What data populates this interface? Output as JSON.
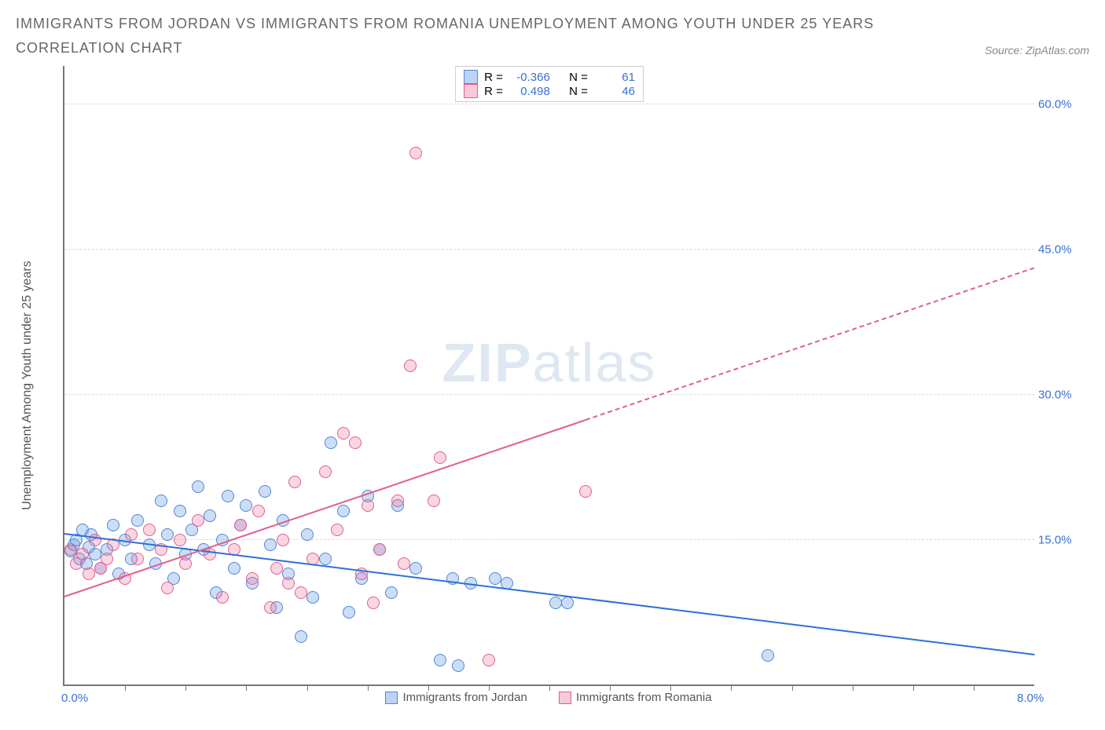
{
  "title": "IMMIGRANTS FROM JORDAN VS IMMIGRANTS FROM ROMANIA UNEMPLOYMENT AMONG YOUTH UNDER 25 YEARS CORRELATION CHART",
  "source": "Source: ZipAtlas.com",
  "ylabel": "Unemployment Among Youth under 25 years",
  "watermark": {
    "strong": "ZIP",
    "light": "atlas"
  },
  "chart": {
    "type": "scatter-correlation",
    "x": {
      "min": 0.0,
      "max": 8.0,
      "min_label": "0.0%",
      "max_label": "8.0%",
      "ticks_every": 0.5
    },
    "y": {
      "min": 0.0,
      "max": 64.0,
      "gridlines": [
        15.0,
        30.0,
        45.0,
        60.0
      ],
      "grid_labels": [
        "15.0%",
        "30.0%",
        "45.0%",
        "60.0%"
      ]
    },
    "grid_color": "#dddddd",
    "axis_color": "#777777",
    "bg_color": "#ffffff",
    "series": [
      {
        "key": "jordan",
        "name": "Immigrants from Jordan",
        "fill": "rgba(110,160,230,0.35)",
        "stroke": "#4f86d9",
        "R": "-0.366",
        "N": "61",
        "trend": {
          "y_at_xmin": 15.5,
          "y_at_xmax": 3.0,
          "solid_until_x": 8.0,
          "color": "#2e6fd6"
        },
        "points": [
          [
            0.05,
            13.8
          ],
          [
            0.08,
            14.5
          ],
          [
            0.1,
            15.0
          ],
          [
            0.12,
            13.0
          ],
          [
            0.15,
            16.0
          ],
          [
            0.18,
            12.5
          ],
          [
            0.2,
            14.2
          ],
          [
            0.22,
            15.5
          ],
          [
            0.25,
            13.5
          ],
          [
            0.3,
            12.0
          ],
          [
            0.35,
            14.0
          ],
          [
            0.4,
            16.5
          ],
          [
            0.45,
            11.5
          ],
          [
            0.5,
            15.0
          ],
          [
            0.55,
            13.0
          ],
          [
            0.6,
            17.0
          ],
          [
            0.7,
            14.5
          ],
          [
            0.75,
            12.5
          ],
          [
            0.8,
            19.0
          ],
          [
            0.85,
            15.5
          ],
          [
            0.9,
            11.0
          ],
          [
            0.95,
            18.0
          ],
          [
            1.0,
            13.5
          ],
          [
            1.05,
            16.0
          ],
          [
            1.1,
            20.5
          ],
          [
            1.15,
            14.0
          ],
          [
            1.2,
            17.5
          ],
          [
            1.25,
            9.5
          ],
          [
            1.3,
            15.0
          ],
          [
            1.35,
            19.5
          ],
          [
            1.4,
            12.0
          ],
          [
            1.45,
            16.5
          ],
          [
            1.5,
            18.5
          ],
          [
            1.55,
            10.5
          ],
          [
            1.65,
            20.0
          ],
          [
            1.7,
            14.5
          ],
          [
            1.75,
            8.0
          ],
          [
            1.8,
            17.0
          ],
          [
            1.85,
            11.5
          ],
          [
            1.95,
            5.0
          ],
          [
            2.0,
            15.5
          ],
          [
            2.05,
            9.0
          ],
          [
            2.15,
            13.0
          ],
          [
            2.2,
            25.0
          ],
          [
            2.3,
            18.0
          ],
          [
            2.35,
            7.5
          ],
          [
            2.45,
            11.0
          ],
          [
            2.5,
            19.5
          ],
          [
            2.6,
            14.0
          ],
          [
            2.7,
            9.5
          ],
          [
            2.75,
            18.5
          ],
          [
            2.9,
            12.0
          ],
          [
            3.1,
            2.5
          ],
          [
            3.2,
            11.0
          ],
          [
            3.25,
            2.0
          ],
          [
            3.35,
            10.5
          ],
          [
            3.55,
            11.0
          ],
          [
            3.65,
            10.5
          ],
          [
            4.05,
            8.5
          ],
          [
            4.15,
            8.5
          ],
          [
            5.8,
            3.0
          ]
        ]
      },
      {
        "key": "romania",
        "name": "Immigrants from Romania",
        "fill": "rgba(235,120,160,0.30)",
        "stroke": "#e15f8f",
        "R": "0.498",
        "N": "46",
        "trend": {
          "y_at_xmin": 9.0,
          "y_at_xmax": 43.0,
          "solid_until_x": 4.3,
          "color": "#e15f8f"
        },
        "points": [
          [
            0.05,
            14.0
          ],
          [
            0.1,
            12.5
          ],
          [
            0.15,
            13.5
          ],
          [
            0.2,
            11.5
          ],
          [
            0.25,
            15.0
          ],
          [
            0.3,
            12.0
          ],
          [
            0.35,
            13.0
          ],
          [
            0.4,
            14.5
          ],
          [
            0.5,
            11.0
          ],
          [
            0.55,
            15.5
          ],
          [
            0.6,
            13.0
          ],
          [
            0.7,
            16.0
          ],
          [
            0.8,
            14.0
          ],
          [
            0.85,
            10.0
          ],
          [
            0.95,
            15.0
          ],
          [
            1.0,
            12.5
          ],
          [
            1.1,
            17.0
          ],
          [
            1.2,
            13.5
          ],
          [
            1.3,
            9.0
          ],
          [
            1.4,
            14.0
          ],
          [
            1.45,
            16.5
          ],
          [
            1.55,
            11.0
          ],
          [
            1.6,
            18.0
          ],
          [
            1.7,
            8.0
          ],
          [
            1.75,
            12.0
          ],
          [
            1.8,
            15.0
          ],
          [
            1.85,
            10.5
          ],
          [
            1.9,
            21.0
          ],
          [
            1.95,
            9.5
          ],
          [
            2.05,
            13.0
          ],
          [
            2.15,
            22.0
          ],
          [
            2.25,
            16.0
          ],
          [
            2.3,
            26.0
          ],
          [
            2.4,
            25.0
          ],
          [
            2.45,
            11.5
          ],
          [
            2.5,
            18.5
          ],
          [
            2.55,
            8.5
          ],
          [
            2.6,
            14.0
          ],
          [
            2.75,
            19.0
          ],
          [
            2.8,
            12.5
          ],
          [
            2.85,
            33.0
          ],
          [
            2.9,
            55.0
          ],
          [
            3.05,
            19.0
          ],
          [
            3.1,
            23.5
          ],
          [
            3.5,
            2.5
          ],
          [
            4.3,
            20.0
          ]
        ]
      }
    ],
    "legend_top": {
      "rows": [
        {
          "sw": "b",
          "r_label": "R =",
          "r_val": "-0.366",
          "n_label": "N =",
          "n_val": "61"
        },
        {
          "sw": "p",
          "r_label": "R =",
          "r_val": "0.498",
          "n_label": "N =",
          "n_val": "46"
        }
      ]
    }
  },
  "bottom_legend": [
    {
      "sw": "b",
      "label": "Immigrants from Jordan"
    },
    {
      "sw": "p",
      "label": "Immigrants from Romania"
    }
  ]
}
